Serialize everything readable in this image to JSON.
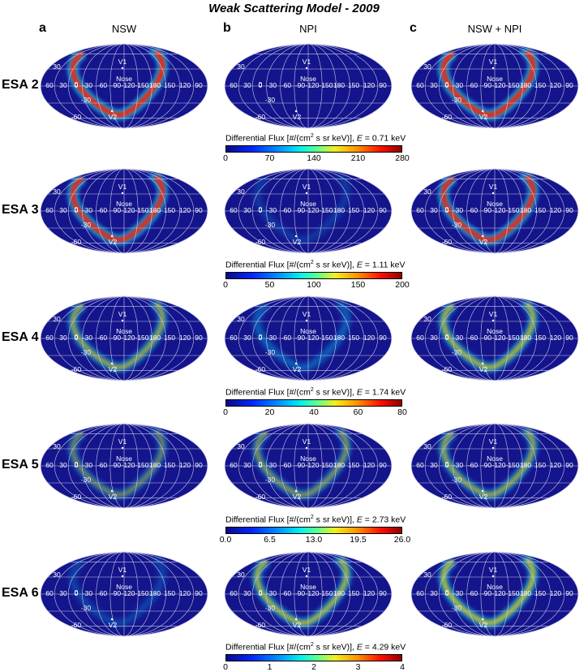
{
  "title": "Weak Scattering Model - 2009",
  "panels": [
    {
      "letter": "a",
      "name": "NSW"
    },
    {
      "letter": "b",
      "name": "NPI"
    },
    {
      "letter": "c",
      "name": "NSW + NPI"
    }
  ],
  "map_labels": {
    "lat_ticks": [
      "60",
      "30",
      "0",
      "-30",
      "-60"
    ],
    "lon_ticks": [
      "60",
      "30",
      "0",
      "-30",
      "-60",
      "-90",
      "-120",
      "-150",
      "180",
      "150",
      "120",
      "90"
    ],
    "nose": "Nose",
    "v1": "V1",
    "v2": "V2"
  },
  "colorbar_label_prefix": "Differential Flux [#/(cm",
  "colorbar_label_mid": "2",
  "colorbar_label_suffix": " s sr keV)], ",
  "colorbar_energy_symbol": "E",
  "colors": {
    "map_background": "#14148c",
    "grid": "#c8c8e8",
    "ribbon_high": "#ff2000",
    "ribbon_mid": "#ffe000",
    "ribbon_low": "#00d0ff"
  },
  "chart_data": {
    "type": "heatmap",
    "projection": "Mollweide all-sky, ecliptic longitude/latitude",
    "rows": [
      {
        "label": "ESA 2",
        "energy": "= 0.71 keV",
        "ticks": [
          "0",
          "70",
          "140",
          "210",
          "280"
        ],
        "range": [
          0,
          280
        ],
        "intensity": {
          "NSW": 1.0,
          "NPI": 0.0,
          "NSW + NPI": 1.0
        }
      },
      {
        "label": "ESA 3",
        "energy": "= 1.11 keV",
        "ticks": [
          "0",
          "50",
          "100",
          "150",
          "200"
        ],
        "range": [
          0,
          200
        ],
        "intensity": {
          "NSW": 0.95,
          "NPI": 0.12,
          "NSW + NPI": 0.95
        }
      },
      {
        "label": "ESA 4",
        "energy": "= 1.74 keV",
        "ticks": [
          "0",
          "20",
          "40",
          "60",
          "80"
        ],
        "range": [
          0,
          80
        ],
        "intensity": {
          "NSW": 0.55,
          "NPI": 0.25,
          "NSW + NPI": 0.62
        }
      },
      {
        "label": "ESA 5",
        "energy": "= 2.73 keV",
        "ticks": [
          "0.0",
          "6.5",
          "13.0",
          "19.5",
          "26.0"
        ],
        "range": [
          0,
          26
        ],
        "intensity": {
          "NSW": 0.38,
          "NPI": 0.45,
          "NSW + NPI": 0.55
        }
      },
      {
        "label": "ESA 6",
        "energy": "= 4.29 keV",
        "ticks": [
          "0",
          "1",
          "2",
          "3",
          "4"
        ],
        "range": [
          0,
          4
        ],
        "intensity": {
          "NSW": 0.15,
          "NPI": 0.62,
          "NSW + NPI": 0.68
        }
      }
    ]
  }
}
